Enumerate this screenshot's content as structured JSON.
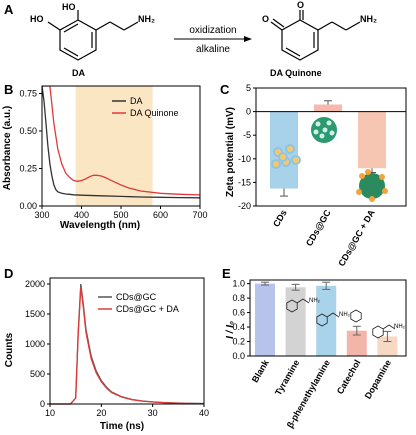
{
  "panels": {
    "a": {
      "label": "A",
      "reactant_name": "DA",
      "product_name": "DA Quinone",
      "arrow_top": "oxidization",
      "arrow_bottom": "alkaline",
      "reactant_atoms": [
        "HO",
        "HO",
        "NH₂"
      ],
      "product_atoms": [
        "O",
        "O",
        "NH₂"
      ]
    },
    "b": {
      "label": "B",
      "chart_data": {
        "type": "line",
        "xlabel": "Wavelength (nm)",
        "ylabel": "Absorbance (a.u.)",
        "xlim": [
          300,
          700
        ],
        "ylim": [
          0,
          0.8
        ],
        "xticks": [
          300,
          400,
          500,
          600,
          700
        ],
        "yticks": [
          0.0,
          0.25,
          0.5,
          0.75
        ],
        "ytick_labels": [
          "0.00",
          "0.25",
          "0.50",
          "0.75"
        ],
        "highlight_range": [
          385,
          580
        ],
        "legend_position": "top-right",
        "series": [
          {
            "name": "DA",
            "color": "#333333",
            "x": [
              300,
              305,
              310,
              315,
              320,
              325,
              330,
              335,
              340,
              350,
              360,
              370,
              380,
              400,
              450,
              500,
              550,
              600,
              650,
              700
            ],
            "y": [
              0.8,
              0.7,
              0.55,
              0.4,
              0.28,
              0.2,
              0.14,
              0.11,
              0.095,
              0.085,
              0.08,
              0.078,
              0.075,
              0.072,
              0.068,
              0.064,
              0.06,
              0.058,
              0.056,
              0.055
            ]
          },
          {
            "name": "DA Quinone",
            "color": "#e03a3a",
            "x": [
              300,
              310,
              320,
              330,
              340,
              350,
              360,
              370,
              380,
              390,
              400,
              410,
              420,
              430,
              440,
              450,
              460,
              480,
              500,
              520,
              550,
              600,
              650,
              700
            ],
            "y": [
              0.8,
              0.8,
              0.8,
              0.55,
              0.38,
              0.28,
              0.22,
              0.19,
              0.17,
              0.165,
              0.17,
              0.18,
              0.195,
              0.205,
              0.205,
              0.2,
              0.19,
              0.165,
              0.14,
              0.12,
              0.1,
              0.085,
              0.078,
              0.074
            ]
          }
        ]
      }
    },
    "c": {
      "label": "C",
      "chart_data": {
        "type": "bar",
        "ylabel": "Zeta potential (mV)",
        "ylim": [
          -20,
          5
        ],
        "yticks": [
          5,
          0,
          -5,
          -10,
          -15,
          -20
        ],
        "categories": [
          "CDs",
          "CDs@GC",
          "CDs@GC + DA"
        ],
        "values": [
          -16.3,
          1.5,
          -12.0
        ],
        "errors": [
          1.6,
          0.8,
          0.9
        ],
        "colors": [
          "#a8d1ea",
          "#f6b9ad",
          "#f7c6b3"
        ]
      }
    },
    "d": {
      "label": "D",
      "chart_data": {
        "type": "line",
        "xlabel": "Time (ns)",
        "ylabel": "Counts",
        "xlim": [
          10,
          40
        ],
        "ylim": [
          0,
          2100
        ],
        "xticks": [
          10,
          20,
          30,
          40
        ],
        "yticks": [
          0,
          500,
          1000,
          1500,
          2000
        ],
        "legend_position": "top-right",
        "series": [
          {
            "name": "CDs@GC",
            "color": "#555555",
            "x": [
              10,
              14,
              15,
              15.5,
              16,
              16.5,
              17,
              18,
              19,
              20,
              21,
              22,
              24,
              26,
              28,
              30,
              32,
              34,
              36,
              38,
              40
            ],
            "y": [
              0,
              0,
              100,
              1200,
              2000,
              1650,
              1250,
              800,
              550,
              390,
              280,
              200,
              120,
              75,
              50,
              35,
              25,
              18,
              12,
              10,
              8
            ]
          },
          {
            "name": "CDs@GC + DA",
            "color": "#e03a3a",
            "x": [
              10,
              14,
              15,
              15.5,
              16,
              16.5,
              17,
              18,
              19,
              20,
              21,
              22,
              24,
              26,
              28,
              30,
              32,
              34,
              36,
              38,
              40
            ],
            "y": [
              0,
              0,
              100,
              1150,
              1950,
              1600,
              1200,
              760,
              520,
              370,
              265,
              190,
              115,
              72,
              48,
              33,
              24,
              17,
              12,
              9,
              7
            ]
          }
        ]
      }
    },
    "e": {
      "label": "E",
      "chart_data": {
        "type": "bar",
        "ylabel": "I / I₀",
        "ylim": [
          0,
          1.05
        ],
        "yticks": [
          0.0,
          0.2,
          0.4,
          0.6,
          0.8,
          1.0
        ],
        "ytick_labels": [
          "0.0",
          "0.2",
          "0.4",
          "0.6",
          "0.8",
          "1.0"
        ],
        "categories": [
          "Blank",
          "Tyramine",
          "β-phenethylamine",
          "Catechol",
          "Dopamine"
        ],
        "values": [
          1.0,
          0.95,
          0.97,
          0.35,
          0.27
        ],
        "errors": [
          0.02,
          0.04,
          0.05,
          0.06,
          0.07
        ],
        "colors": [
          "#b7c3ea",
          "#d3d3d3",
          "#a9d3ea",
          "#f3b4aa",
          "#f6d8c4"
        ],
        "structure_labels": [
          "NH₂",
          "NH₂",
          "NH₂"
        ]
      }
    }
  }
}
